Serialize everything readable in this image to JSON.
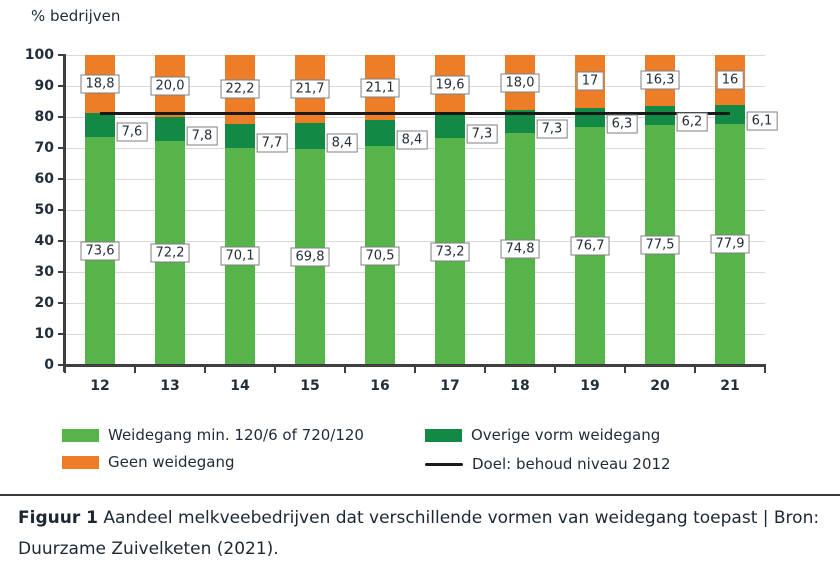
{
  "chart_data": {
    "type": "bar",
    "stacked": true,
    "title": "% bedrijven",
    "ylabel": "% bedrijven",
    "xlabel": "",
    "categories": [
      "12",
      "13",
      "14",
      "15",
      "16",
      "17",
      "18",
      "19",
      "20",
      "21"
    ],
    "series": [
      {
        "name": "Weidegang min. 120/6 of 720/120",
        "color": "#56b44a",
        "values": [
          73.6,
          72.2,
          70.1,
          69.8,
          70.5,
          73.2,
          74.8,
          76.7,
          77.5,
          77.9
        ],
        "labels": [
          "73,6",
          "72,2",
          "70,1",
          "69,8",
          "70,5",
          "73,2",
          "74,8",
          "76,7",
          "77,5",
          "77,9"
        ]
      },
      {
        "name": "Overige vorm weidegang",
        "color": "#128a45",
        "values": [
          7.6,
          7.8,
          7.7,
          8.4,
          8.4,
          7.3,
          7.3,
          6.3,
          6.2,
          6.1
        ],
        "labels": [
          "7,6",
          "7,8",
          "7,7",
          "8,4",
          "8,4",
          "7,3",
          "7,3",
          "6,3",
          "6,2",
          "6,1"
        ]
      },
      {
        "name": "Geen weidegang",
        "color": "#ee7d28",
        "values": [
          18.8,
          20.0,
          22.2,
          21.7,
          21.1,
          19.6,
          18.0,
          17,
          16.3,
          16
        ],
        "labels": [
          "18,8",
          "20,0",
          "22,2",
          "21,7",
          "21,1",
          "19,6",
          "18,0",
          "17",
          "16,3",
          "16"
        ]
      }
    ],
    "target_line": {
      "name": "Doel: behoud niveau 2012",
      "value": 81.2,
      "color": "#1a1a1a"
    },
    "ylim": [
      0,
      100
    ],
    "ytick_step": 10,
    "grid": true,
    "legend_position": "bottom"
  },
  "caption": {
    "label": "Figuur 1",
    "text": "Aandeel melkveebedrijven dat verschillende vormen van weidegang toepast | Bron: Duurzame Zuivelketen (2021)."
  }
}
